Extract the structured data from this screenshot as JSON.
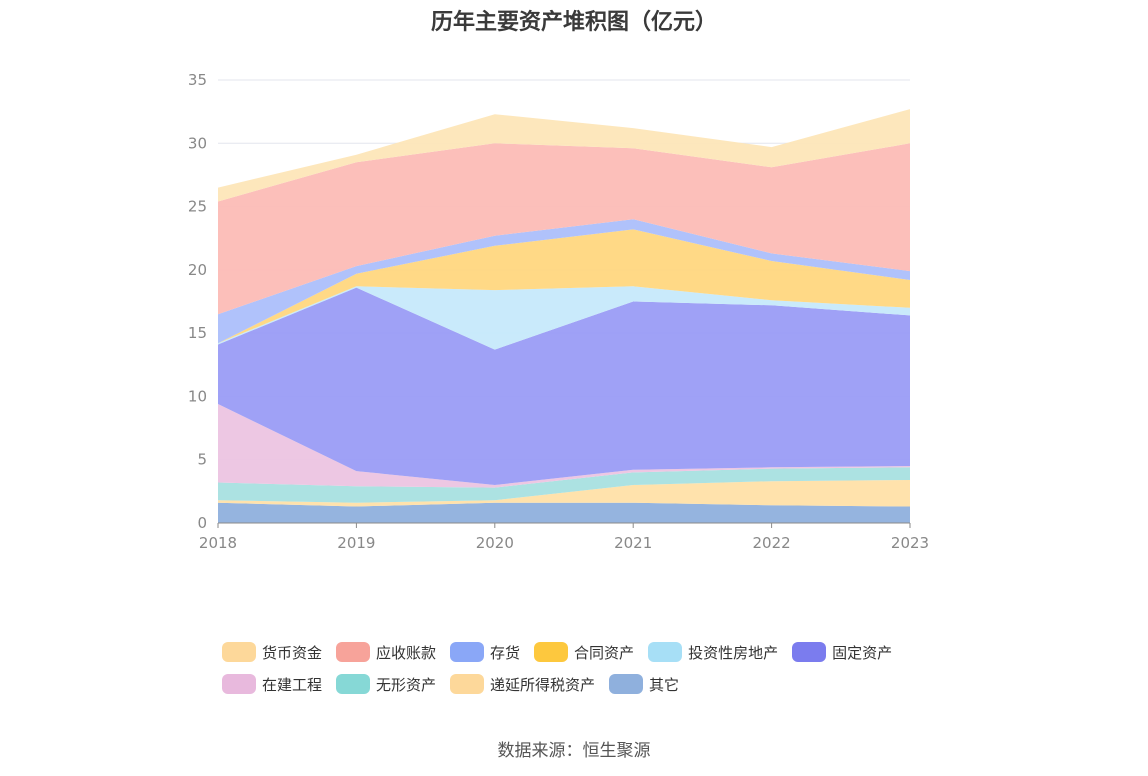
{
  "title": "历年主要资产堆积图（亿元）",
  "source": "数据来源：恒生聚源",
  "legend_rows": [
    [
      0,
      1,
      2,
      3,
      4,
      5
    ],
    [
      6,
      7,
      8,
      9
    ]
  ],
  "chart_data": {
    "type": "area",
    "stacked": true,
    "title": "历年主要资产堆积图（亿元）",
    "xlabel": "",
    "ylabel": "",
    "x": [
      "2018",
      "2019",
      "2020",
      "2021",
      "2022",
      "2023"
    ],
    "ylim": [
      0,
      35
    ],
    "yticks": [
      0,
      5,
      10,
      15,
      20,
      25,
      30,
      35
    ],
    "grid": true,
    "legend_position": "bottom",
    "series": [
      {
        "name": "其它",
        "color": "#8fb0dd",
        "values": [
          1.6,
          1.3,
          1.6,
          1.6,
          1.4,
          1.3
        ]
      },
      {
        "name": "递延所得税资产",
        "color": "#ffe0a8",
        "values": [
          0.2,
          0.3,
          0.2,
          1.4,
          1.9,
          2.1
        ]
      },
      {
        "name": "无形资产",
        "color": "#a8e0e0",
        "values": [
          1.4,
          1.3,
          1.0,
          1.0,
          1.0,
          1.0
        ]
      },
      {
        "name": "在建工程",
        "color": "#ecc4e2",
        "values": [
          6.2,
          1.2,
          0.2,
          0.2,
          0.1,
          0.1
        ]
      },
      {
        "name": "固定资产",
        "color": "#9a9cf6",
        "values": [
          4.7,
          14.5,
          10.7,
          13.3,
          12.8,
          11.9
        ]
      },
      {
        "name": "投资性房地产",
        "color": "#c6e9fb",
        "values": [
          0.1,
          0.1,
          4.7,
          1.2,
          0.4,
          0.6
        ]
      },
      {
        "name": "合同资产",
        "color": "#ffd77f",
        "values": [
          0.0,
          1.0,
          3.5,
          4.5,
          3.1,
          2.2
        ]
      },
      {
        "name": "存货",
        "color": "#acbffb",
        "values": [
          2.3,
          0.6,
          0.8,
          0.8,
          0.6,
          0.7
        ]
      },
      {
        "name": "应收账款",
        "color": "#fcbcb6",
        "values": [
          8.9,
          8.2,
          7.3,
          5.6,
          6.8,
          10.1
        ]
      },
      {
        "name": "货币资金",
        "color": "#fde6b8",
        "values": [
          1.1,
          0.6,
          2.3,
          1.6,
          1.6,
          2.7
        ]
      }
    ],
    "legend": [
      {
        "name": "货币资金",
        "color": "#fdd89a"
      },
      {
        "name": "应收账款",
        "color": "#f7a39a"
      },
      {
        "name": "存货",
        "color": "#8aa7f7"
      },
      {
        "name": "合同资产",
        "color": "#fdc83e"
      },
      {
        "name": "投资性房地产",
        "color": "#a7dff6"
      },
      {
        "name": "固定资产",
        "color": "#7b7cee"
      },
      {
        "name": "在建工程",
        "color": "#e8b9dd"
      },
      {
        "name": "无形资产",
        "color": "#86d8d6"
      },
      {
        "name": "递延所得税资产",
        "color": "#fdd89a"
      },
      {
        "name": "其它",
        "color": "#8fb0dd"
      }
    ]
  }
}
